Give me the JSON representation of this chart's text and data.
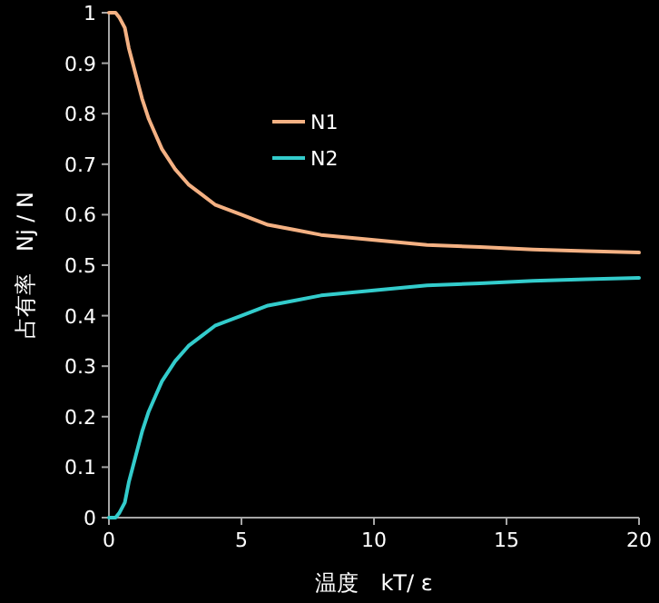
{
  "chart_data": {
    "type": "line",
    "xlabel": "温度　kT/ ε",
    "ylabel": "占有率　Nj / N",
    "x": [
      0,
      0.1,
      0.25,
      0.4,
      0.5,
      0.6,
      0.75,
      1,
      1.25,
      1.5,
      1.75,
      2,
      2.5,
      3,
      3.5,
      4,
      5,
      6,
      7,
      8,
      10,
      12,
      14,
      16,
      18,
      20
    ],
    "series": [
      {
        "name": "N1",
        "color": "#f4b183",
        "values": [
          1.0,
          1.0,
          1.0,
          0.99,
          0.98,
          0.97,
          0.93,
          0.88,
          0.83,
          0.79,
          0.76,
          0.73,
          0.69,
          0.66,
          0.64,
          0.62,
          0.6,
          0.58,
          0.57,
          0.56,
          0.55,
          0.54,
          0.536,
          0.531,
          0.528,
          0.525
        ]
      },
      {
        "name": "N2",
        "color": "#33cccc",
        "values": [
          0.0,
          0.0,
          0.0,
          0.01,
          0.02,
          0.03,
          0.07,
          0.12,
          0.17,
          0.21,
          0.24,
          0.27,
          0.31,
          0.34,
          0.36,
          0.38,
          0.4,
          0.42,
          0.43,
          0.44,
          0.45,
          0.46,
          0.464,
          0.469,
          0.472,
          0.475
        ]
      }
    ],
    "xlim": [
      0,
      20
    ],
    "ylim": [
      0,
      1
    ],
    "xticks": [
      0,
      5,
      10,
      15,
      20
    ],
    "yticks": [
      0,
      0.1,
      0.2,
      0.3,
      0.4,
      0.5,
      0.6,
      0.7,
      0.8,
      0.9,
      1
    ],
    "legend": "top"
  }
}
